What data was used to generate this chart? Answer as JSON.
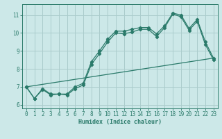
{
  "xlabel": "Humidex (Indice chaleur)",
  "bg_color": "#cce8e8",
  "grid_color": "#aacccc",
  "line_color": "#2a7a6a",
  "xlim": [
    -0.5,
    23.5
  ],
  "ylim": [
    5.8,
    11.6
  ],
  "yticks": [
    6,
    7,
    8,
    9,
    10,
    11
  ],
  "xticks": [
    0,
    1,
    2,
    3,
    4,
    5,
    6,
    7,
    8,
    9,
    10,
    11,
    12,
    13,
    14,
    15,
    16,
    17,
    18,
    19,
    20,
    21,
    22,
    23
  ],
  "series1_x": [
    0,
    1,
    2,
    3,
    4,
    5,
    6,
    7,
    8,
    9,
    10,
    11,
    12,
    13,
    14,
    15,
    16,
    17,
    18,
    19,
    20,
    21,
    22,
    23
  ],
  "series1_y": [
    7.0,
    6.35,
    6.9,
    6.6,
    6.6,
    6.6,
    7.0,
    7.2,
    8.4,
    9.0,
    9.65,
    10.1,
    10.1,
    10.2,
    10.3,
    10.3,
    9.95,
    10.4,
    11.1,
    11.0,
    10.25,
    10.75,
    9.5,
    8.6
  ],
  "series2_x": [
    0,
    1,
    2,
    3,
    4,
    5,
    6,
    7,
    8,
    9,
    10,
    11,
    12,
    13,
    14,
    15,
    16,
    17,
    18,
    19,
    20,
    21,
    22,
    23
  ],
  "series2_y": [
    7.0,
    6.35,
    6.85,
    6.55,
    6.6,
    6.55,
    6.9,
    7.1,
    8.25,
    8.85,
    9.5,
    10.0,
    9.95,
    10.05,
    10.2,
    10.2,
    9.8,
    10.3,
    11.05,
    10.9,
    10.15,
    10.65,
    9.35,
    8.5
  ],
  "series3_x": [
    0,
    23
  ],
  "series3_y": [
    7.0,
    8.6
  ]
}
